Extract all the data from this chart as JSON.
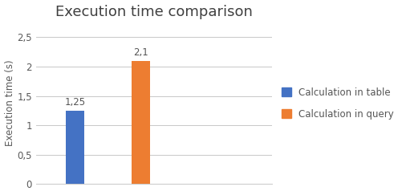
{
  "title": "Execution time comparison",
  "categories": [
    "Calculation in table",
    "Calculation in query"
  ],
  "values": [
    1.25,
    2.1
  ],
  "bar_colors": [
    "#4472C4",
    "#ED7D31"
  ],
  "bar_labels": [
    "1,25",
    "2,1"
  ],
  "ylabel": "Execution time (s)",
  "yticks": [
    0,
    0.5,
    1.0,
    1.5,
    2.0,
    2.5
  ],
  "ytick_labels": [
    "0",
    "0,5",
    "1",
    "1,5",
    "2",
    "2,5"
  ],
  "ylim": [
    0,
    2.75
  ],
  "legend_labels": [
    "Calculation in table",
    "Calculation in query"
  ],
  "legend_colors": [
    "#4472C4",
    "#ED7D31"
  ],
  "title_fontsize": 13,
  "label_fontsize": 8.5,
  "tick_fontsize": 8.5,
  "bar_width": 0.28,
  "x_positions": [
    1,
    2
  ],
  "xlim": [
    0.4,
    4.0
  ],
  "background_color": "#FFFFFF"
}
